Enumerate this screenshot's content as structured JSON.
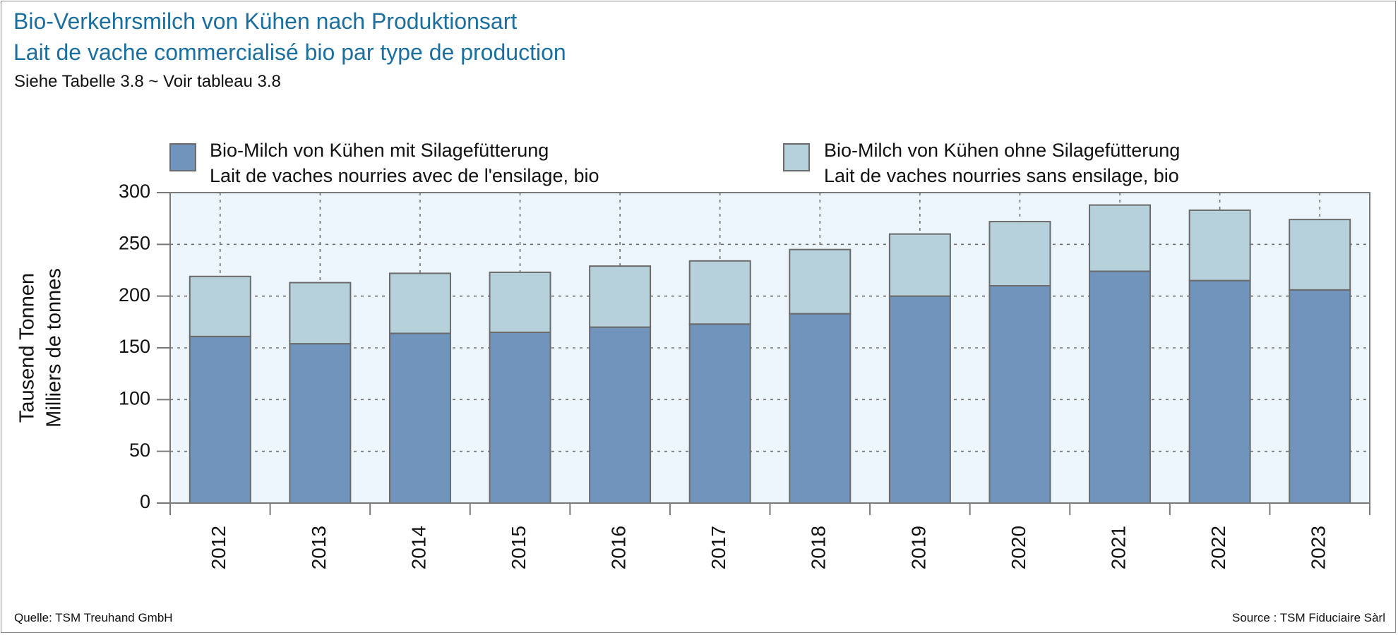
{
  "header": {
    "title_de": "Bio-Verkehrsmilch von Kühen nach Produktionsart",
    "title_fr": "Lait de vache commercialisé bio par type de production",
    "reference": "Siehe Tabelle 3.8  ~  Voir tableau 3.8"
  },
  "footer": {
    "source_de": "Quelle: TSM Treuhand GmbH",
    "source_fr": "Source : TSM Fiduciaire Sàrl"
  },
  "colors": {
    "with_silage": "#7094bc",
    "without_silage": "#b7d1dc",
    "plot_background": "#eef6fd",
    "title": "#1a6fa0"
  },
  "chart_data": {
    "type": "bar",
    "stacked": true,
    "categories": [
      "2012",
      "2013",
      "2014",
      "2015",
      "2016",
      "2017",
      "2018",
      "2019",
      "2020",
      "2021",
      "2022",
      "2023"
    ],
    "series": [
      {
        "name": "Bio-Milch von Kühen mit Silagefütterung / Lait de vaches nourries avec de l'ensilage, bio",
        "legend_line1": "Bio-Milch von Kühen mit Silagefütterung",
        "legend_line2": "Lait de vaches nourries avec de l'ensilage, bio",
        "color": "#7094bc",
        "values": [
          161,
          154,
          164,
          165,
          170,
          173,
          183,
          200,
          210,
          224,
          215,
          206
        ]
      },
      {
        "name": "Bio-Milch von Kühen ohne Silagefütterung / Lait de vaches nourries sans ensilage, bio",
        "legend_line1": "Bio-Milch von Kühen ohne Silagefütterung",
        "legend_line2": "Lait de vaches nourries sans ensilage, bio",
        "color": "#b7d1dc",
        "values": [
          58,
          59,
          58,
          58,
          59,
          61,
          62,
          60,
          62,
          64,
          68,
          68
        ]
      }
    ],
    "ylabel_line1": "Tausend Tonnen",
    "ylabel_line2": "Milliers de tonnes",
    "ylim": [
      0,
      300
    ],
    "yticks": [
      0,
      50,
      100,
      150,
      200,
      250,
      300
    ],
    "grid": true,
    "legend_position": "top"
  }
}
